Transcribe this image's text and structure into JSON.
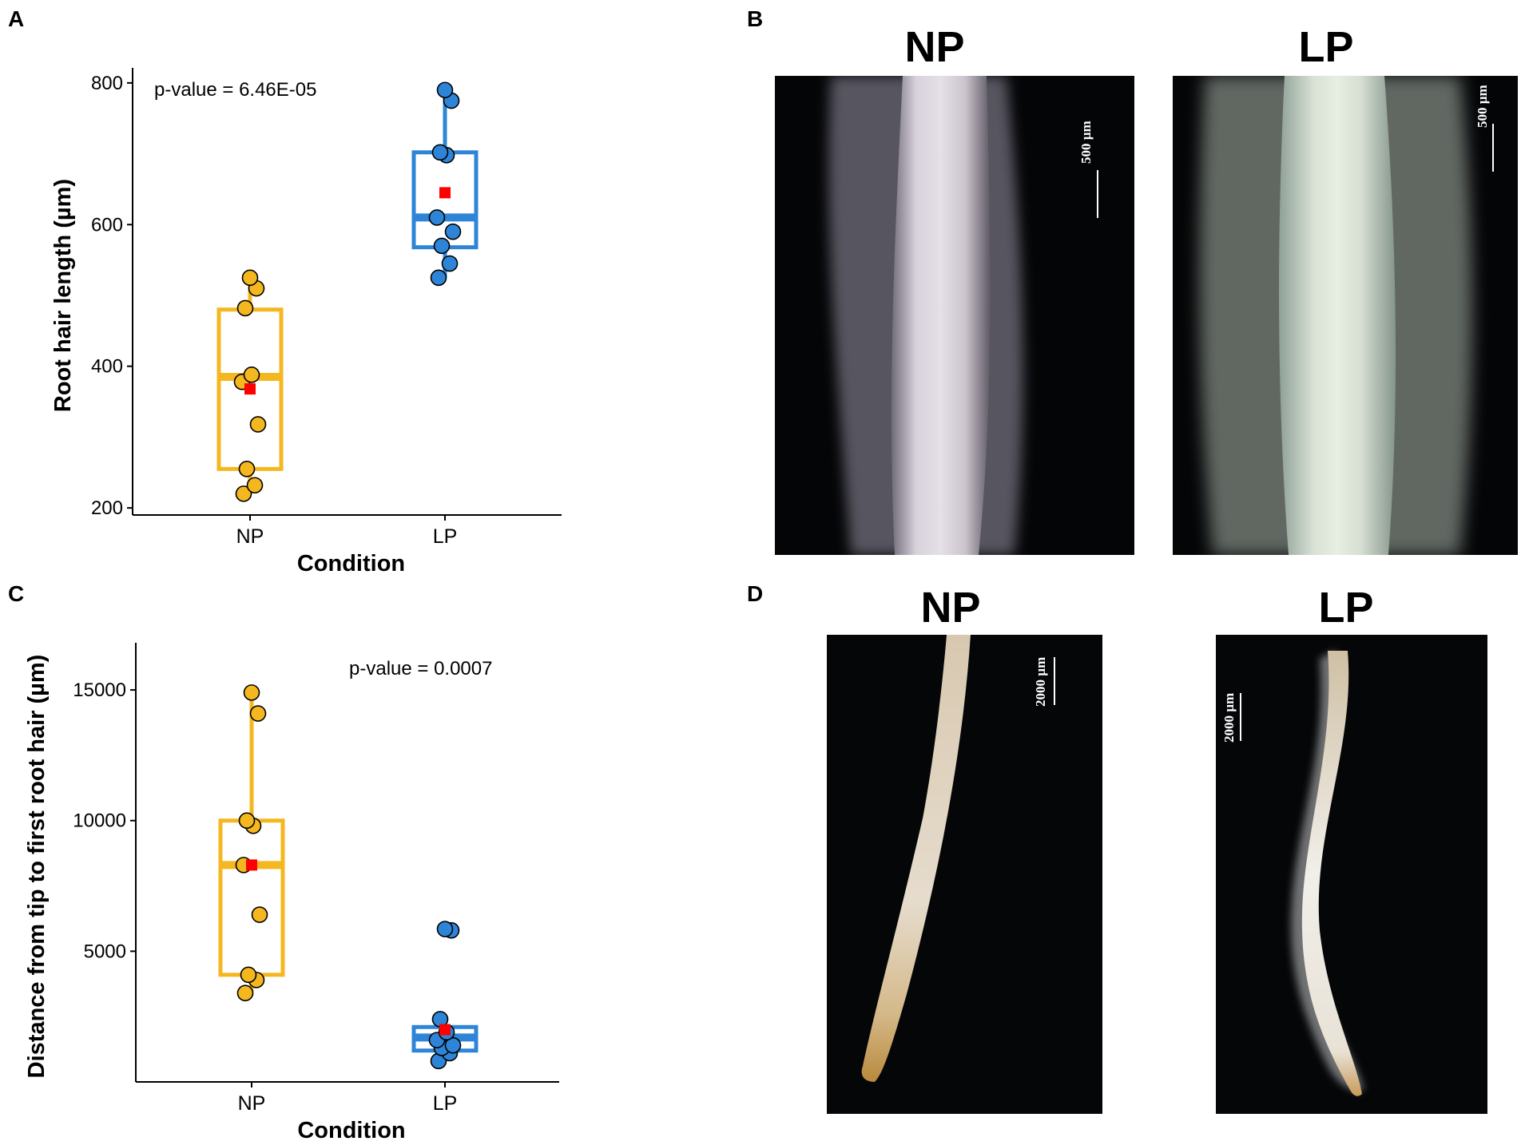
{
  "panels": {
    "a": "A",
    "b": "B",
    "c": "C",
    "d": "D"
  },
  "chart_data": [
    {
      "type": "box",
      "ylabel": "Root hair length (µm)",
      "xlabel": "Condition",
      "categories": [
        "NP",
        "LP"
      ],
      "ylim": [
        190,
        810
      ],
      "yticks": [
        200,
        400,
        600,
        800
      ],
      "annotation": "p-value = 6.46E-05",
      "box_colors": [
        "#f4b71f",
        "#2e85d8"
      ],
      "mean_color": "#ff0000",
      "boxes": [
        {
          "name": "NP",
          "whisker_low": 220,
          "q1": 255,
          "median": 385,
          "q3": 480,
          "whisker_high": 525,
          "mean": 368
        },
        {
          "name": "LP",
          "whisker_low": 525,
          "q1": 568,
          "median": 610,
          "q3": 702,
          "whisker_high": 790,
          "mean": 645
        }
      ],
      "points": [
        {
          "x": "NP",
          "values": [
            220,
            232,
            255,
            318,
            378,
            388,
            482,
            510,
            525
          ]
        },
        {
          "x": "LP",
          "values": [
            525,
            545,
            570,
            590,
            610,
            698,
            702,
            775,
            790
          ]
        }
      ]
    },
    {
      "type": "box",
      "ylabel": "Distance from tip to first root hair (µm)",
      "xlabel": "Condition",
      "categories": [
        "NP",
        "LP"
      ],
      "ylim": [
        0,
        16500
      ],
      "yticks": [
        5000,
        10000,
        15000
      ],
      "annotation": "p-value = 0.0007",
      "box_colors": [
        "#f4b71f",
        "#2e85d8"
      ],
      "mean_color": "#ff0000",
      "boxes": [
        {
          "name": "NP",
          "whisker_low": 3300,
          "q1": 4100,
          "median": 8300,
          "q3": 10000,
          "whisker_high": 14900,
          "mean": 8300
        },
        {
          "name": "LP",
          "whisker_low": 800,
          "q1": 1200,
          "median": 1700,
          "q3": 2100,
          "whisker_high": 2400,
          "mean": 2000
        },
        {
          "name": "LP-outlier",
          "hidden": true
        }
      ],
      "points": [
        {
          "x": "NP",
          "values": [
            3400,
            3900,
            4100,
            6400,
            8300,
            9800,
            10000,
            14100,
            14900
          ]
        },
        {
          "x": "LP",
          "values": [
            800,
            1100,
            1300,
            1400,
            1600,
            1900,
            2400,
            5800,
            5850
          ]
        }
      ]
    }
  ],
  "photos": {
    "b_np": {
      "title": "NP",
      "scale": "500 µm"
    },
    "b_lp": {
      "title": "LP",
      "scale": "500 µm"
    },
    "d_np": {
      "title": "NP",
      "scale": "2000 µm"
    },
    "d_lp": {
      "title": "LP",
      "scale": "2000 µm"
    }
  }
}
